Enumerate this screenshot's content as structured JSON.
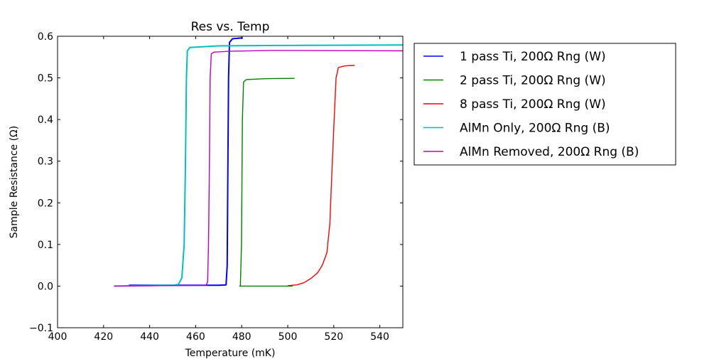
{
  "chart_data": {
    "type": "line",
    "title": "Res vs. Temp",
    "xlabel": "Temperature (mK)",
    "ylabel": "Sample Resistance (Ω)",
    "xlim": [
      400,
      550
    ],
    "ylim": [
      -0.1,
      0.6
    ],
    "xticks": [
      "400",
      "420",
      "440",
      "460",
      "480",
      "500",
      "520",
      "540"
    ],
    "yticks": [
      "−0.1",
      "0.0",
      "0.1",
      "0.2",
      "0.3",
      "0.4",
      "0.5",
      "0.6"
    ],
    "grid": false,
    "legend_position": "outside-right",
    "series": [
      {
        "name": "1 pass Ti, 200Ω Rng (W)",
        "color": "#0000ff",
        "points": [
          [
            431,
            0.002
          ],
          [
            470,
            0.002
          ],
          [
            473.2,
            0.003
          ],
          [
            473.7,
            0.05
          ],
          [
            474.0,
            0.3
          ],
          [
            474.3,
            0.5
          ],
          [
            474.7,
            0.585
          ],
          [
            476,
            0.594
          ],
          [
            480.5,
            0.596
          ]
        ]
      },
      {
        "name": "2 pass Ti, 200Ω Rng (W)",
        "color": "#008000",
        "points": [
          [
            479,
            0.0
          ],
          [
            502,
            0.0
          ],
          [
            479.4,
            0.0
          ],
          [
            479.9,
            0.1
          ],
          [
            480.3,
            0.4
          ],
          [
            480.8,
            0.49
          ],
          [
            482,
            0.496
          ],
          [
            490,
            0.498
          ],
          [
            503,
            0.499
          ]
        ]
      },
      {
        "name": "8 pass Ti, 200Ω Rng (W)",
        "color": "#ff0000",
        "points": [
          [
            500,
            0.001
          ],
          [
            504,
            0.003
          ],
          [
            507,
            0.008
          ],
          [
            510,
            0.018
          ],
          [
            513,
            0.032
          ],
          [
            515,
            0.05
          ],
          [
            517,
            0.08
          ],
          [
            518.3,
            0.15
          ],
          [
            519,
            0.25
          ],
          [
            520,
            0.38
          ],
          [
            521,
            0.5
          ],
          [
            522,
            0.525
          ],
          [
            525,
            0.529
          ],
          [
            529,
            0.53
          ]
        ]
      },
      {
        "name": "AlMn Only, 200Ω Rng (B)",
        "color": "#00bfbf",
        "points": [
          [
            424.5,
            0.0
          ],
          [
            450,
            0.002
          ],
          [
            452.5,
            0.004
          ],
          [
            454,
            0.02
          ],
          [
            455,
            0.1
          ],
          [
            455.6,
            0.3
          ],
          [
            456,
            0.5
          ],
          [
            456.4,
            0.565
          ],
          [
            457.5,
            0.573
          ],
          [
            470,
            0.577
          ],
          [
            500,
            0.578
          ],
          [
            550,
            0.579
          ]
        ]
      },
      {
        "name": "AlMn Removed, 200Ω Rng (B)",
        "color": "#bf00bf",
        "points": [
          [
            424.5,
            0.0
          ],
          [
            464.5,
            0.002
          ],
          [
            465.2,
            0.01
          ],
          [
            465.6,
            0.1
          ],
          [
            466,
            0.3
          ],
          [
            466.3,
            0.5
          ],
          [
            466.8,
            0.558
          ],
          [
            468,
            0.562
          ],
          [
            475,
            0.564
          ],
          [
            493,
            0.566
          ],
          [
            550,
            0.565
          ]
        ]
      }
    ]
  }
}
